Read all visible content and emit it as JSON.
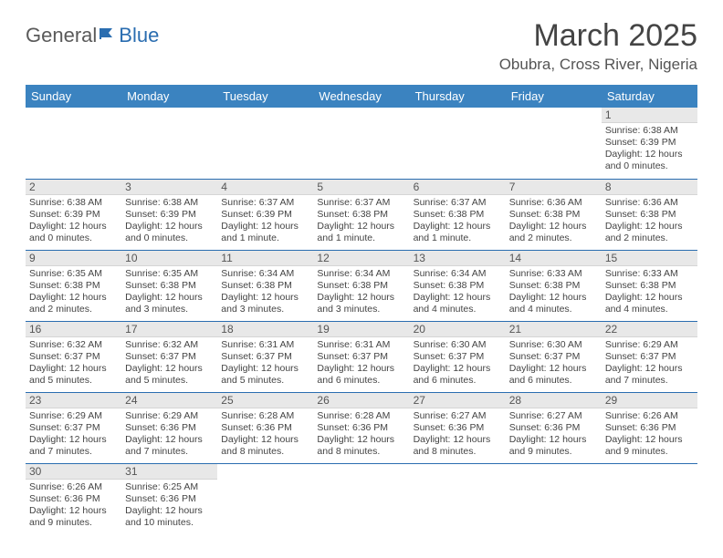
{
  "logo": {
    "part1": "General",
    "part2": "Blue"
  },
  "title": "March 2025",
  "location": "Obubra, Cross River, Nigeria",
  "colors": {
    "header_bg": "#3b83c0",
    "header_text": "#ffffff",
    "daynum_bg": "#e8e8e8",
    "cell_border": "#2a6db0",
    "logo_blue": "#2a6db0"
  },
  "columns": [
    "Sunday",
    "Monday",
    "Tuesday",
    "Wednesday",
    "Thursday",
    "Friday",
    "Saturday"
  ],
  "weeks": [
    [
      null,
      null,
      null,
      null,
      null,
      null,
      {
        "n": "1",
        "sr": "Sunrise: 6:38 AM",
        "ss": "Sunset: 6:39 PM",
        "dl": "Daylight: 12 hours and 0 minutes."
      }
    ],
    [
      {
        "n": "2",
        "sr": "Sunrise: 6:38 AM",
        "ss": "Sunset: 6:39 PM",
        "dl": "Daylight: 12 hours and 0 minutes."
      },
      {
        "n": "3",
        "sr": "Sunrise: 6:38 AM",
        "ss": "Sunset: 6:39 PM",
        "dl": "Daylight: 12 hours and 0 minutes."
      },
      {
        "n": "4",
        "sr": "Sunrise: 6:37 AM",
        "ss": "Sunset: 6:39 PM",
        "dl": "Daylight: 12 hours and 1 minute."
      },
      {
        "n": "5",
        "sr": "Sunrise: 6:37 AM",
        "ss": "Sunset: 6:38 PM",
        "dl": "Daylight: 12 hours and 1 minute."
      },
      {
        "n": "6",
        "sr": "Sunrise: 6:37 AM",
        "ss": "Sunset: 6:38 PM",
        "dl": "Daylight: 12 hours and 1 minute."
      },
      {
        "n": "7",
        "sr": "Sunrise: 6:36 AM",
        "ss": "Sunset: 6:38 PM",
        "dl": "Daylight: 12 hours and 2 minutes."
      },
      {
        "n": "8",
        "sr": "Sunrise: 6:36 AM",
        "ss": "Sunset: 6:38 PM",
        "dl": "Daylight: 12 hours and 2 minutes."
      }
    ],
    [
      {
        "n": "9",
        "sr": "Sunrise: 6:35 AM",
        "ss": "Sunset: 6:38 PM",
        "dl": "Daylight: 12 hours and 2 minutes."
      },
      {
        "n": "10",
        "sr": "Sunrise: 6:35 AM",
        "ss": "Sunset: 6:38 PM",
        "dl": "Daylight: 12 hours and 3 minutes."
      },
      {
        "n": "11",
        "sr": "Sunrise: 6:34 AM",
        "ss": "Sunset: 6:38 PM",
        "dl": "Daylight: 12 hours and 3 minutes."
      },
      {
        "n": "12",
        "sr": "Sunrise: 6:34 AM",
        "ss": "Sunset: 6:38 PM",
        "dl": "Daylight: 12 hours and 3 minutes."
      },
      {
        "n": "13",
        "sr": "Sunrise: 6:34 AM",
        "ss": "Sunset: 6:38 PM",
        "dl": "Daylight: 12 hours and 4 minutes."
      },
      {
        "n": "14",
        "sr": "Sunrise: 6:33 AM",
        "ss": "Sunset: 6:38 PM",
        "dl": "Daylight: 12 hours and 4 minutes."
      },
      {
        "n": "15",
        "sr": "Sunrise: 6:33 AM",
        "ss": "Sunset: 6:38 PM",
        "dl": "Daylight: 12 hours and 4 minutes."
      }
    ],
    [
      {
        "n": "16",
        "sr": "Sunrise: 6:32 AM",
        "ss": "Sunset: 6:37 PM",
        "dl": "Daylight: 12 hours and 5 minutes."
      },
      {
        "n": "17",
        "sr": "Sunrise: 6:32 AM",
        "ss": "Sunset: 6:37 PM",
        "dl": "Daylight: 12 hours and 5 minutes."
      },
      {
        "n": "18",
        "sr": "Sunrise: 6:31 AM",
        "ss": "Sunset: 6:37 PM",
        "dl": "Daylight: 12 hours and 5 minutes."
      },
      {
        "n": "19",
        "sr": "Sunrise: 6:31 AM",
        "ss": "Sunset: 6:37 PM",
        "dl": "Daylight: 12 hours and 6 minutes."
      },
      {
        "n": "20",
        "sr": "Sunrise: 6:30 AM",
        "ss": "Sunset: 6:37 PM",
        "dl": "Daylight: 12 hours and 6 minutes."
      },
      {
        "n": "21",
        "sr": "Sunrise: 6:30 AM",
        "ss": "Sunset: 6:37 PM",
        "dl": "Daylight: 12 hours and 6 minutes."
      },
      {
        "n": "22",
        "sr": "Sunrise: 6:29 AM",
        "ss": "Sunset: 6:37 PM",
        "dl": "Daylight: 12 hours and 7 minutes."
      }
    ],
    [
      {
        "n": "23",
        "sr": "Sunrise: 6:29 AM",
        "ss": "Sunset: 6:37 PM",
        "dl": "Daylight: 12 hours and 7 minutes."
      },
      {
        "n": "24",
        "sr": "Sunrise: 6:29 AM",
        "ss": "Sunset: 6:36 PM",
        "dl": "Daylight: 12 hours and 7 minutes."
      },
      {
        "n": "25",
        "sr": "Sunrise: 6:28 AM",
        "ss": "Sunset: 6:36 PM",
        "dl": "Daylight: 12 hours and 8 minutes."
      },
      {
        "n": "26",
        "sr": "Sunrise: 6:28 AM",
        "ss": "Sunset: 6:36 PM",
        "dl": "Daylight: 12 hours and 8 minutes."
      },
      {
        "n": "27",
        "sr": "Sunrise: 6:27 AM",
        "ss": "Sunset: 6:36 PM",
        "dl": "Daylight: 12 hours and 8 minutes."
      },
      {
        "n": "28",
        "sr": "Sunrise: 6:27 AM",
        "ss": "Sunset: 6:36 PM",
        "dl": "Daylight: 12 hours and 9 minutes."
      },
      {
        "n": "29",
        "sr": "Sunrise: 6:26 AM",
        "ss": "Sunset: 6:36 PM",
        "dl": "Daylight: 12 hours and 9 minutes."
      }
    ],
    [
      {
        "n": "30",
        "sr": "Sunrise: 6:26 AM",
        "ss": "Sunset: 6:36 PM",
        "dl": "Daylight: 12 hours and 9 minutes."
      },
      {
        "n": "31",
        "sr": "Sunrise: 6:25 AM",
        "ss": "Sunset: 6:36 PM",
        "dl": "Daylight: 12 hours and 10 minutes."
      },
      null,
      null,
      null,
      null,
      null
    ]
  ]
}
